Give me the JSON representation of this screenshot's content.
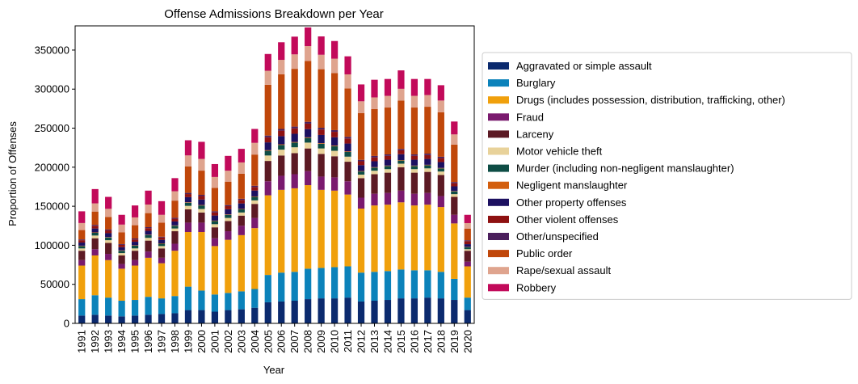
{
  "chart_data": {
    "type": "bar",
    "stacked": true,
    "title": "Offense Admissions Breakdown per Year",
    "xlabel": "Year",
    "ylabel": "Proportion of Offenses",
    "ylim": [
      0,
      381000
    ],
    "yticks": [
      0,
      50000,
      100000,
      150000,
      200000,
      250000,
      300000,
      350000
    ],
    "ytick_labels": [
      "0",
      "50000",
      "100000",
      "150000",
      "200000",
      "250000",
      "300000",
      "350000"
    ],
    "grid": false,
    "legend_position": "right",
    "categories": [
      "1991",
      "1992",
      "1993",
      "1994",
      "1995",
      "1996",
      "1997",
      "1998",
      "1999",
      "2000",
      "2001",
      "2002",
      "2003",
      "2004",
      "2005",
      "2006",
      "2007",
      "2008",
      "2009",
      "2010",
      "2011",
      "2012",
      "2013",
      "2014",
      "2015",
      "2016",
      "2017",
      "2018",
      "2019",
      "2020"
    ],
    "series": [
      {
        "name": "Aggravated or simple assault",
        "color": "#0b2a6e",
        "values": [
          10000,
          11000,
          10000,
          9000,
          10000,
          11000,
          12000,
          13000,
          17000,
          17000,
          15000,
          17000,
          18000,
          20000,
          27000,
          28000,
          29000,
          31000,
          32000,
          32000,
          33000,
          28000,
          29000,
          30000,
          32000,
          32000,
          33000,
          32000,
          30000,
          17000
        ]
      },
      {
        "name": "Burglary",
        "color": "#0b82ba",
        "values": [
          21000,
          25000,
          23000,
          20000,
          20000,
          23000,
          20000,
          22000,
          30000,
          25000,
          22000,
          22000,
          23000,
          24000,
          35000,
          37000,
          37000,
          39000,
          39000,
          40000,
          40000,
          37000,
          37000,
          37000,
          37000,
          36000,
          35000,
          34000,
          27000,
          16000
        ]
      },
      {
        "name": "Drugs (includes possession, distribution, trafficking, other)",
        "color": "#f0a00c",
        "values": [
          43000,
          51000,
          48000,
          41000,
          44000,
          50000,
          45000,
          58000,
          70000,
          75000,
          62000,
          68000,
          72000,
          78000,
          102000,
          106000,
          107000,
          107000,
          100000,
          98000,
          92000,
          82000,
          85000,
          85000,
          86000,
          83000,
          84000,
          83000,
          71000,
          40000
        ]
      },
      {
        "name": "Fraud",
        "color": "#7a1a6e",
        "values": [
          7000,
          8000,
          8000,
          6000,
          7000,
          8000,
          7000,
          9000,
          12000,
          12000,
          10000,
          11000,
          12000,
          13000,
          18000,
          18000,
          18000,
          18000,
          17000,
          17000,
          17000,
          14000,
          15000,
          15000,
          15000,
          15000,
          15000,
          14000,
          11000,
          6000
        ]
      },
      {
        "name": "Larceny",
        "color": "#5c1a24",
        "values": [
          12000,
          14000,
          14000,
          11000,
          12000,
          14000,
          12000,
          16000,
          17000,
          13000,
          14000,
          13000,
          13000,
          18000,
          26000,
          26000,
          27000,
          29000,
          29000,
          27000,
          25000,
          25000,
          25000,
          26000,
          30000,
          27000,
          27000,
          27000,
          23000,
          14000
        ]
      },
      {
        "name": "Motor vehicle theft",
        "color": "#e8d29a",
        "values": [
          3000,
          3500,
          3500,
          3000,
          3000,
          3500,
          3000,
          3500,
          4500,
          4500,
          4000,
          4000,
          4000,
          4500,
          7000,
          7500,
          7500,
          7500,
          7000,
          7000,
          6500,
          4500,
          4500,
          4500,
          4500,
          4500,
          4500,
          4500,
          3500,
          2000
        ]
      },
      {
        "name": "Murder (including non-negligent manslaughter)",
        "color": "#0e4d45",
        "values": [
          3000,
          3500,
          3500,
          3000,
          3500,
          3500,
          3000,
          3500,
          4000,
          4500,
          4000,
          4000,
          4000,
          4500,
          6000,
          6000,
          6000,
          6000,
          6000,
          6000,
          6000,
          4000,
          4000,
          4000,
          4000,
          4000,
          4000,
          4000,
          3500,
          2500
        ]
      },
      {
        "name": "Negligent manslaughter",
        "color": "#d35e0d",
        "values": [
          500,
          500,
          500,
          500,
          500,
          500,
          500,
          500,
          600,
          600,
          600,
          600,
          600,
          600,
          800,
          800,
          800,
          800,
          800,
          800,
          800,
          600,
          600,
          600,
          600,
          600,
          600,
          600,
          500,
          400
        ]
      },
      {
        "name": "Other property offenses",
        "color": "#1c1060",
        "values": [
          4000,
          5000,
          5000,
          4000,
          4500,
          5000,
          4500,
          5000,
          6500,
          7000,
          6500,
          6500,
          7000,
          7500,
          10000,
          10500,
          10500,
          10500,
          10500,
          10500,
          10000,
          7500,
          7500,
          7500,
          7500,
          7500,
          7500,
          7500,
          6000,
          3500
        ]
      },
      {
        "name": "Other violent offenses",
        "color": "#8e1111",
        "values": [
          3000,
          3500,
          3500,
          3000,
          3000,
          3500,
          3000,
          3500,
          4000,
          4500,
          4000,
          4000,
          4500,
          4500,
          6500,
          7000,
          7000,
          7000,
          7000,
          7000,
          6500,
          5000,
          5000,
          5000,
          5000,
          5000,
          5000,
          5000,
          4000,
          4000
        ]
      },
      {
        "name": "Other/unspecified",
        "color": "#4b1f5c",
        "values": [
          1000,
          1200,
          1200,
          1000,
          1200,
          1200,
          1000,
          1200,
          1500,
          1500,
          1400,
          1400,
          1500,
          1600,
          2200,
          2200,
          2200,
          2300,
          2200,
          2200,
          2100,
          1800,
          1800,
          1800,
          1800,
          1800,
          1800,
          1800,
          1500,
          1000
        ]
      },
      {
        "name": "Public order",
        "color": "#c0470a",
        "values": [
          12000,
          17000,
          16000,
          15000,
          17000,
          18000,
          18000,
          22000,
          34000,
          31000,
          30000,
          30000,
          32000,
          40000,
          65000,
          70000,
          74000,
          78000,
          75000,
          73000,
          62000,
          60000,
          60000,
          60000,
          62000,
          60000,
          60000,
          57000,
          48000,
          15000
        ]
      },
      {
        "name": "Rape/sexual assault",
        "color": "#dfa48e",
        "values": [
          9000,
          10500,
          10500,
          10000,
          10000,
          11000,
          10000,
          12000,
          14000,
          15000,
          14000,
          14000,
          14500,
          15000,
          18000,
          18500,
          18500,
          19000,
          18500,
          18500,
          18000,
          15000,
          15000,
          15000,
          15000,
          15000,
          15000,
          15000,
          13000,
          7000
        ]
      },
      {
        "name": "Robbery",
        "color": "#c20a5a",
        "values": [
          15000,
          18300,
          15300,
          12500,
          15300,
          17800,
          17500,
          16800,
          19400,
          21900,
          16500,
          19000,
          17400,
          17800,
          21500,
          22500,
          22700,
          23900,
          23500,
          22600,
          23100,
          21600,
          22600,
          21600,
          23600,
          21600,
          20600,
          19600,
          16500,
          10600
        ]
      }
    ]
  }
}
